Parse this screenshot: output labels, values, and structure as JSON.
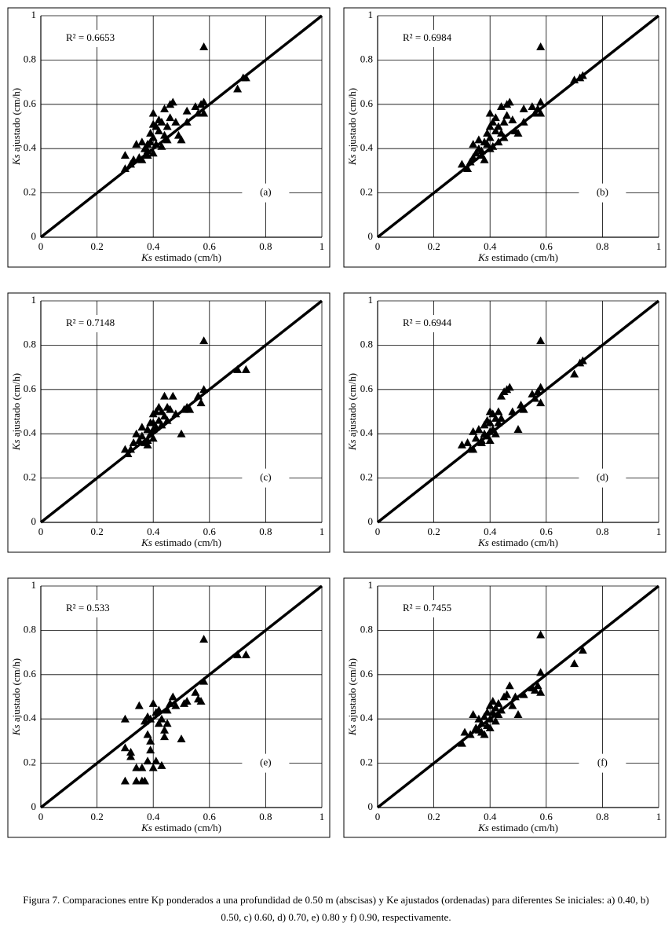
{
  "chart_data": [
    {
      "type": "scatter",
      "panel": "(a)",
      "annotation": "R² = 0.6653",
      "xlabel_symbol": "Ks",
      "xlabel": "estimado (cm/h)",
      "ylabel_symbol": "Ks",
      "ylabel": "ajustado (cm/h)",
      "color": "#000000",
      "marker": "triangle",
      "grid": true,
      "xlim": [
        0,
        1
      ],
      "ylim": [
        0,
        1
      ],
      "xticks": [
        0,
        0.2,
        0.4,
        0.6,
        0.8,
        1
      ],
      "yticks": [
        0,
        0.2,
        0.4,
        0.6,
        0.8,
        1
      ],
      "x": [
        0.3,
        0.3,
        0.32,
        0.33,
        0.34,
        0.35,
        0.36,
        0.36,
        0.37,
        0.38,
        0.38,
        0.39,
        0.39,
        0.4,
        0.4,
        0.4,
        0.41,
        0.41,
        0.42,
        0.42,
        0.43,
        0.43,
        0.44,
        0.44,
        0.45,
        0.45,
        0.46,
        0.46,
        0.47,
        0.48,
        0.49,
        0.5,
        0.52,
        0.52,
        0.55,
        0.56,
        0.57,
        0.58,
        0.58,
        0.58,
        0.7,
        0.72,
        0.73,
        0.4,
        0.38
      ],
      "values": [
        0.37,
        0.31,
        0.33,
        0.35,
        0.42,
        0.36,
        0.35,
        0.43,
        0.4,
        0.42,
        0.39,
        0.47,
        0.43,
        0.56,
        0.51,
        0.45,
        0.5,
        0.42,
        0.53,
        0.48,
        0.52,
        0.41,
        0.58,
        0.46,
        0.5,
        0.44,
        0.6,
        0.54,
        0.61,
        0.52,
        0.46,
        0.44,
        0.57,
        0.52,
        0.59,
        0.56,
        0.6,
        0.61,
        0.56,
        0.86,
        0.67,
        0.72,
        0.72,
        0.38,
        0.37
      ]
    },
    {
      "type": "scatter",
      "panel": "(b)",
      "annotation": "R² = 0.6984",
      "xlabel_symbol": "Ks",
      "xlabel": "estimado (cm/h)",
      "ylabel_symbol": "Ks",
      "ylabel": "ajustado (cm/h)",
      "color": "#000000",
      "marker": "triangle",
      "grid": true,
      "xlim": [
        0,
        1
      ],
      "ylim": [
        0,
        1
      ],
      "xticks": [
        0,
        0.2,
        0.4,
        0.6,
        0.8,
        1
      ],
      "yticks": [
        0,
        0.2,
        0.4,
        0.6,
        0.8,
        1
      ],
      "x": [
        0.3,
        0.32,
        0.33,
        0.34,
        0.34,
        0.35,
        0.36,
        0.36,
        0.37,
        0.38,
        0.38,
        0.39,
        0.39,
        0.4,
        0.4,
        0.4,
        0.41,
        0.41,
        0.42,
        0.42,
        0.43,
        0.43,
        0.44,
        0.44,
        0.45,
        0.45,
        0.46,
        0.46,
        0.47,
        0.48,
        0.49,
        0.5,
        0.52,
        0.52,
        0.55,
        0.56,
        0.57,
        0.58,
        0.58,
        0.58,
        0.7,
        0.72,
        0.73,
        0.4,
        0.37
      ],
      "values": [
        0.33,
        0.31,
        0.34,
        0.36,
        0.42,
        0.38,
        0.4,
        0.44,
        0.37,
        0.43,
        0.35,
        0.47,
        0.42,
        0.56,
        0.5,
        0.45,
        0.52,
        0.41,
        0.54,
        0.48,
        0.5,
        0.43,
        0.59,
        0.47,
        0.52,
        0.45,
        0.6,
        0.55,
        0.61,
        0.53,
        0.48,
        0.47,
        0.58,
        0.52,
        0.59,
        0.56,
        0.58,
        0.61,
        0.56,
        0.86,
        0.71,
        0.72,
        0.73,
        0.4,
        0.39
      ]
    },
    {
      "type": "scatter",
      "panel": "(c)",
      "annotation": "R² = 0.7148",
      "xlabel_symbol": "Ks",
      "xlabel": "estimado (cm/h)",
      "ylabel_symbol": "Ks",
      "ylabel": "ajustado (cm/h)",
      "color": "#000000",
      "marker": "triangle",
      "grid": true,
      "xlim": [
        0,
        1
      ],
      "ylim": [
        0,
        1
      ],
      "xticks": [
        0,
        0.2,
        0.4,
        0.6,
        0.8,
        1
      ],
      "yticks": [
        0,
        0.2,
        0.4,
        0.6,
        0.8,
        1
      ],
      "x": [
        0.3,
        0.31,
        0.32,
        0.33,
        0.34,
        0.35,
        0.36,
        0.36,
        0.37,
        0.38,
        0.38,
        0.39,
        0.39,
        0.4,
        0.4,
        0.4,
        0.41,
        0.41,
        0.42,
        0.42,
        0.43,
        0.43,
        0.44,
        0.44,
        0.45,
        0.45,
        0.46,
        0.47,
        0.48,
        0.5,
        0.51,
        0.52,
        0.53,
        0.56,
        0.57,
        0.58,
        0.58,
        0.7,
        0.73,
        0.4,
        0.38
      ],
      "values": [
        0.33,
        0.31,
        0.33,
        0.36,
        0.4,
        0.37,
        0.43,
        0.39,
        0.36,
        0.42,
        0.35,
        0.45,
        0.4,
        0.49,
        0.45,
        0.42,
        0.5,
        0.43,
        0.52,
        0.46,
        0.5,
        0.44,
        0.57,
        0.48,
        0.52,
        0.46,
        0.51,
        0.57,
        0.49,
        0.4,
        0.51,
        0.52,
        0.51,
        0.57,
        0.54,
        0.6,
        0.82,
        0.69,
        0.69,
        0.38,
        0.37
      ]
    },
    {
      "type": "scatter",
      "panel": "(d)",
      "annotation": "R² = 0.6944",
      "xlabel_symbol": "Ks",
      "xlabel": "estimado (cm/h)",
      "ylabel_symbol": "Ks",
      "ylabel": "ajustado (cm/h)",
      "color": "#000000",
      "marker": "triangle",
      "grid": true,
      "xlim": [
        0,
        1
      ],
      "ylim": [
        0,
        1
      ],
      "xticks": [
        0,
        0.2,
        0.4,
        0.6,
        0.8,
        1
      ],
      "yticks": [
        0,
        0.2,
        0.4,
        0.6,
        0.8,
        1
      ],
      "x": [
        0.3,
        0.32,
        0.33,
        0.34,
        0.34,
        0.35,
        0.36,
        0.37,
        0.38,
        0.38,
        0.39,
        0.39,
        0.4,
        0.4,
        0.4,
        0.41,
        0.41,
        0.42,
        0.42,
        0.43,
        0.43,
        0.44,
        0.44,
        0.45,
        0.46,
        0.47,
        0.48,
        0.5,
        0.51,
        0.52,
        0.55,
        0.56,
        0.57,
        0.58,
        0.58,
        0.58,
        0.7,
        0.72,
        0.73,
        0.4,
        0.37
      ],
      "values": [
        0.35,
        0.36,
        0.33,
        0.41,
        0.33,
        0.38,
        0.42,
        0.37,
        0.44,
        0.4,
        0.46,
        0.39,
        0.5,
        0.45,
        0.37,
        0.49,
        0.42,
        0.47,
        0.4,
        0.5,
        0.45,
        0.57,
        0.47,
        0.59,
        0.6,
        0.61,
        0.5,
        0.42,
        0.53,
        0.51,
        0.58,
        0.56,
        0.59,
        0.61,
        0.54,
        0.82,
        0.67,
        0.72,
        0.73,
        0.41,
        0.36
      ]
    },
    {
      "type": "scatter",
      "panel": "(e)",
      "annotation": "R² = 0.533",
      "xlabel_symbol": "Ks",
      "xlabel": "estimado (cm/h)",
      "ylabel_symbol": "Ks",
      "ylabel": "ajustado (cm/h)",
      "color": "#000000",
      "marker": "triangle",
      "grid": true,
      "xlim": [
        0,
        1
      ],
      "ylim": [
        0,
        1
      ],
      "xticks": [
        0,
        0.2,
        0.4,
        0.6,
        0.8,
        1
      ],
      "yticks": [
        0,
        0.2,
        0.4,
        0.6,
        0.8,
        1
      ],
      "x": [
        0.3,
        0.3,
        0.3,
        0.32,
        0.32,
        0.34,
        0.34,
        0.35,
        0.36,
        0.36,
        0.37,
        0.37,
        0.38,
        0.38,
        0.39,
        0.39,
        0.4,
        0.4,
        0.41,
        0.42,
        0.43,
        0.43,
        0.44,
        0.45,
        0.46,
        0.47,
        0.48,
        0.5,
        0.51,
        0.52,
        0.55,
        0.56,
        0.57,
        0.58,
        0.58,
        0.7,
        0.73,
        0.39,
        0.41,
        0.38,
        0.45,
        0.42,
        0.44
      ],
      "values": [
        0.12,
        0.27,
        0.4,
        0.25,
        0.23,
        0.18,
        0.12,
        0.46,
        0.12,
        0.18,
        0.12,
        0.39,
        0.21,
        0.33,
        0.3,
        0.26,
        0.18,
        0.47,
        0.21,
        0.44,
        0.4,
        0.19,
        0.35,
        0.38,
        0.47,
        0.5,
        0.46,
        0.31,
        0.47,
        0.48,
        0.52,
        0.49,
        0.48,
        0.57,
        0.76,
        0.69,
        0.69,
        0.4,
        0.43,
        0.41,
        0.44,
        0.38,
        0.32
      ]
    },
    {
      "type": "scatter",
      "panel": "(f)",
      "annotation": "R² = 0.7455",
      "xlabel_symbol": "Ks",
      "xlabel": "estimado (cm/h)",
      "ylabel_symbol": "Ks",
      "ylabel": "ajustado (cm/h)",
      "color": "#000000",
      "marker": "triangle",
      "grid": true,
      "xlim": [
        0,
        1
      ],
      "ylim": [
        0,
        1
      ],
      "xticks": [
        0,
        0.2,
        0.4,
        0.6,
        0.8,
        1
      ],
      "yticks": [
        0,
        0.2,
        0.4,
        0.6,
        0.8,
        1
      ],
      "x": [
        0.3,
        0.31,
        0.33,
        0.34,
        0.35,
        0.36,
        0.36,
        0.37,
        0.38,
        0.38,
        0.39,
        0.39,
        0.4,
        0.4,
        0.41,
        0.41,
        0.42,
        0.42,
        0.43,
        0.43,
        0.44,
        0.45,
        0.46,
        0.47,
        0.48,
        0.49,
        0.5,
        0.52,
        0.55,
        0.56,
        0.57,
        0.58,
        0.58,
        0.58,
        0.7,
        0.73,
        0.4,
        0.37
      ],
      "values": [
        0.29,
        0.34,
        0.33,
        0.42,
        0.36,
        0.4,
        0.35,
        0.38,
        0.33,
        0.41,
        0.43,
        0.37,
        0.46,
        0.4,
        0.48,
        0.43,
        0.45,
        0.39,
        0.47,
        0.42,
        0.44,
        0.5,
        0.51,
        0.55,
        0.46,
        0.5,
        0.42,
        0.51,
        0.54,
        0.53,
        0.55,
        0.61,
        0.52,
        0.78,
        0.65,
        0.71,
        0.36,
        0.34
      ]
    }
  ],
  "caption": "Figura 7. Comparaciones entre Kp ponderados a una profundidad de 0.50 m (abscisas) y Ke ajustados (ordenadas) para diferentes Se iniciales: a) 0.40, b) 0.50, c) 0.60, d) 0.70, e) 0.80 y f) 0.90, respectivamente."
}
